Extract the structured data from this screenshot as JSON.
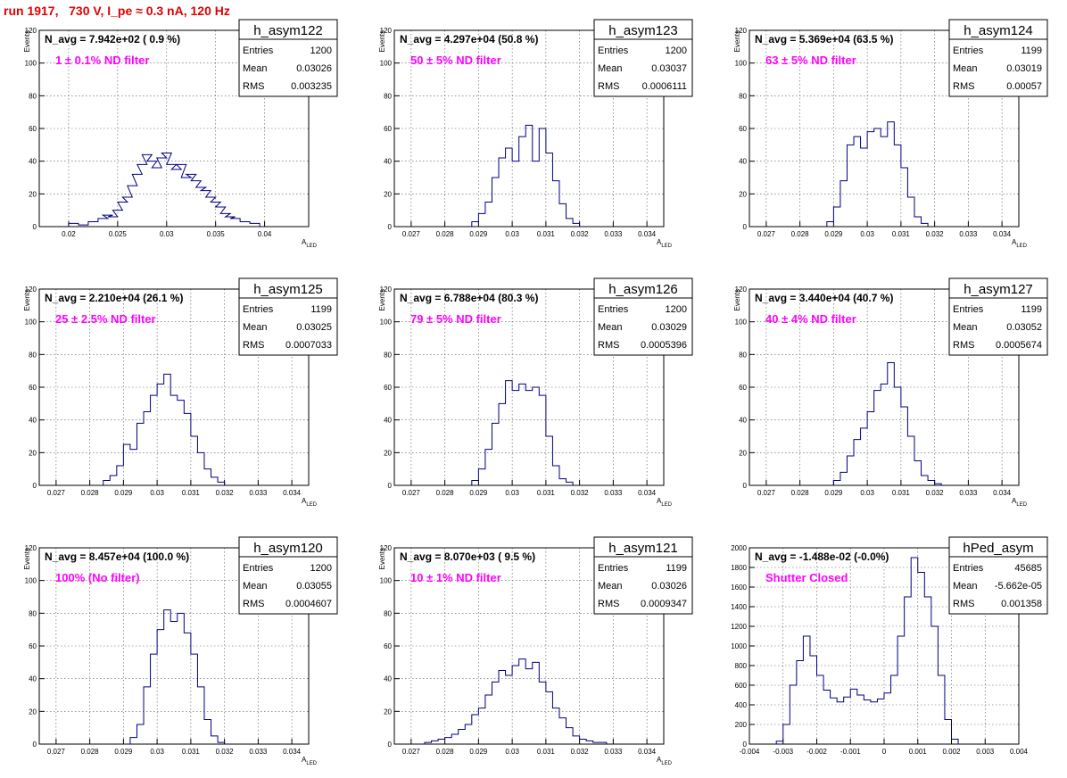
{
  "page": {
    "title": "run 1917,   730 V, I_pe ≈ 0.3 nA, 120 Hz"
  },
  "colors": {
    "histogram": "#000080",
    "annotation": "#ff00ff",
    "title": "#e00000",
    "grid": "#555555"
  },
  "stats_labels": {
    "entries": "Entries",
    "mean": "Mean",
    "rms": "RMS"
  },
  "chart_data": [
    {
      "type": "histogram",
      "hist_name": "h_asym122",
      "navg": "N_avg = 7.942e+02 ( 0.9 %)",
      "filter": "1 ± 0.1% ND filter",
      "ylabel": "Events",
      "xlabel": "A",
      "xlabel_sub": "LED",
      "xlim": [
        0.017,
        0.0445
      ],
      "ylim": [
        0,
        120
      ],
      "xticks": [
        0.02,
        0.025,
        0.03,
        0.035,
        0.04
      ],
      "xtick_labels": [
        "0.02",
        "0.025",
        "0.03",
        "0.035",
        "0.04"
      ],
      "yticks": [
        0,
        20,
        40,
        60,
        80,
        100,
        120
      ],
      "stats": {
        "entries": "1200",
        "mean": "0.03026",
        "rms": "0.003235"
      },
      "x": [
        0.0205,
        0.0215,
        0.0225,
        0.0235,
        0.024,
        0.0245,
        0.025,
        0.0255,
        0.026,
        0.0265,
        0.027,
        0.0275,
        0.028,
        0.0285,
        0.029,
        0.0295,
        0.03,
        0.0305,
        0.031,
        0.0315,
        0.032,
        0.0325,
        0.033,
        0.0335,
        0.034,
        0.0345,
        0.035,
        0.0355,
        0.036,
        0.0365,
        0.037,
        0.038,
        0.039
      ],
      "values": [
        2,
        1,
        3,
        5,
        7,
        6,
        10,
        15,
        18,
        25,
        32,
        38,
        44,
        40,
        36,
        42,
        45,
        38,
        35,
        38,
        30,
        32,
        28,
        24,
        22,
        18,
        15,
        12,
        8,
        6,
        5,
        3,
        2
      ]
    },
    {
      "type": "histogram",
      "hist_name": "h_asym123",
      "navg": "N_avg = 4.297e+04 (50.8 %)",
      "filter": "50 ± 5% ND filter",
      "ylabel": "Events",
      "xlabel": "A",
      "xlabel_sub": "LED",
      "xlim": [
        0.0265,
        0.0345
      ],
      "ylim": [
        0,
        120
      ],
      "xticks": [
        0.027,
        0.028,
        0.029,
        0.03,
        0.031,
        0.032,
        0.033,
        0.034
      ],
      "xtick_labels": [
        "0.027",
        "0.028",
        "0.029",
        "0.03",
        "0.031",
        "0.032",
        "0.033",
        "0.034"
      ],
      "yticks": [
        0,
        20,
        40,
        60,
        80,
        100,
        120
      ],
      "stats": {
        "entries": "1200",
        "mean": "0.03037",
        "rms": "0.0006111"
      },
      "x": [
        0.0289,
        0.0291,
        0.0293,
        0.0295,
        0.0297,
        0.0299,
        0.0301,
        0.0303,
        0.0305,
        0.0307,
        0.0309,
        0.0311,
        0.0313,
        0.0315,
        0.0317,
        0.0319
      ],
      "values": [
        3,
        8,
        15,
        30,
        42,
        48,
        40,
        55,
        62,
        40,
        60,
        45,
        28,
        14,
        5,
        2
      ]
    },
    {
      "type": "histogram",
      "hist_name": "h_asym124",
      "navg": "N_avg = 5.369e+04 (63.5 %)",
      "filter": "63 ± 5% ND filter",
      "ylabel": "Events",
      "xlabel": "A",
      "xlabel_sub": "LED",
      "xlim": [
        0.0265,
        0.0345
      ],
      "ylim": [
        0,
        120
      ],
      "xticks": [
        0.027,
        0.028,
        0.029,
        0.03,
        0.031,
        0.032,
        0.033,
        0.034
      ],
      "xtick_labels": [
        "0.027",
        "0.028",
        "0.029",
        "0.03",
        "0.031",
        "0.032",
        "0.033",
        "0.034"
      ],
      "yticks": [
        0,
        20,
        40,
        60,
        80,
        100,
        120
      ],
      "stats": {
        "entries": "1199",
        "mean": "0.03019",
        "rms": "0.00057"
      },
      "x": [
        0.0289,
        0.0291,
        0.0293,
        0.0295,
        0.0297,
        0.0299,
        0.0301,
        0.0303,
        0.0305,
        0.0307,
        0.0309,
        0.0311,
        0.0313,
        0.0315,
        0.0317
      ],
      "values": [
        3,
        12,
        28,
        50,
        55,
        48,
        58,
        60,
        55,
        64,
        50,
        36,
        18,
        6,
        2
      ]
    },
    {
      "type": "histogram",
      "hist_name": "h_asym125",
      "navg": "N_avg = 2.210e+04 (26.1 %)",
      "filter": "25 ± 2.5% ND filter",
      "ylabel": "Events",
      "xlabel": "A",
      "xlabel_sub": "LED",
      "xlim": [
        0.0265,
        0.0345
      ],
      "ylim": [
        0,
        120
      ],
      "xticks": [
        0.027,
        0.028,
        0.029,
        0.03,
        0.031,
        0.032,
        0.033,
        0.034
      ],
      "xtick_labels": [
        "0.027",
        "0.028",
        "0.029",
        "0.03",
        "0.031",
        "0.032",
        "0.033",
        "0.034"
      ],
      "yticks": [
        0,
        20,
        40,
        60,
        80,
        100,
        120
      ],
      "stats": {
        "entries": "1199",
        "mean": "0.03025",
        "rms": "0.0007033"
      },
      "x": [
        0.0285,
        0.0287,
        0.0289,
        0.0291,
        0.0293,
        0.0295,
        0.0297,
        0.0299,
        0.0301,
        0.0303,
        0.0305,
        0.0307,
        0.0309,
        0.0311,
        0.0313,
        0.0315,
        0.0317,
        0.0319
      ],
      "values": [
        3,
        6,
        12,
        25,
        22,
        38,
        45,
        55,
        62,
        68,
        55,
        52,
        44,
        30,
        20,
        10,
        5,
        2
      ]
    },
    {
      "type": "histogram",
      "hist_name": "h_asym126",
      "navg": "N_avg = 6.788e+04 (80.3 %)",
      "filter": "79 ± 5% ND filter",
      "ylabel": "Events",
      "xlabel": "A",
      "xlabel_sub": "LED",
      "xlim": [
        0.0265,
        0.0345
      ],
      "ylim": [
        0,
        120
      ],
      "xticks": [
        0.027,
        0.028,
        0.029,
        0.03,
        0.031,
        0.032,
        0.033,
        0.034
      ],
      "xtick_labels": [
        "0.027",
        "0.028",
        "0.029",
        "0.03",
        "0.031",
        "0.032",
        "0.033",
        "0.034"
      ],
      "yticks": [
        0,
        20,
        40,
        60,
        80,
        100,
        120
      ],
      "stats": {
        "entries": "1200",
        "mean": "0.03029",
        "rms": "0.0005396"
      },
      "x": [
        0.0289,
        0.0291,
        0.0293,
        0.0295,
        0.0297,
        0.0299,
        0.0301,
        0.0303,
        0.0305,
        0.0307,
        0.0309,
        0.0311,
        0.0313,
        0.0315,
        0.0317
      ],
      "values": [
        3,
        10,
        22,
        38,
        50,
        64,
        58,
        62,
        58,
        60,
        55,
        30,
        12,
        4,
        2
      ]
    },
    {
      "type": "histogram",
      "hist_name": "h_asym127",
      "navg": "N_avg = 3.440e+04 (40.7 %)",
      "filter": "40 ± 4% ND filter",
      "ylabel": "Events",
      "xlabel": "A",
      "xlabel_sub": "LED",
      "xlim": [
        0.0265,
        0.0345
      ],
      "ylim": [
        0,
        120
      ],
      "xticks": [
        0.027,
        0.028,
        0.029,
        0.03,
        0.031,
        0.032,
        0.033,
        0.034
      ],
      "xtick_labels": [
        "0.027",
        "0.028",
        "0.029",
        "0.03",
        "0.031",
        "0.032",
        "0.033",
        "0.034"
      ],
      "yticks": [
        0,
        20,
        40,
        60,
        80,
        100,
        120
      ],
      "stats": {
        "entries": "1199",
        "mean": "0.03052",
        "rms": "0.0005674"
      },
      "x": [
        0.0291,
        0.0293,
        0.0295,
        0.0297,
        0.0299,
        0.0301,
        0.0303,
        0.0305,
        0.0307,
        0.0309,
        0.0311,
        0.0313,
        0.0315,
        0.0317,
        0.0319,
        0.0321
      ],
      "values": [
        3,
        8,
        18,
        28,
        35,
        45,
        58,
        62,
        75,
        60,
        48,
        30,
        15,
        6,
        3,
        1
      ]
    },
    {
      "type": "histogram",
      "hist_name": "h_asym120",
      "navg": "N_avg = 8.457e+04 (100.0 %)",
      "filter": "100% (No filter)",
      "ylabel": "Events",
      "xlabel": "A",
      "xlabel_sub": "LED",
      "xlim": [
        0.0265,
        0.0345
      ],
      "ylim": [
        0,
        120
      ],
      "xticks": [
        0.027,
        0.028,
        0.029,
        0.03,
        0.031,
        0.032,
        0.033,
        0.034
      ],
      "xtick_labels": [
        "0.027",
        "0.028",
        "0.029",
        "0.03",
        "0.031",
        "0.032",
        "0.033",
        "0.034"
      ],
      "yticks": [
        0,
        20,
        40,
        60,
        80,
        100,
        120
      ],
      "stats": {
        "entries": "1200",
        "mean": "0.03055",
        "rms": "0.0004607"
      },
      "x": [
        0.0293,
        0.0295,
        0.0297,
        0.0299,
        0.0301,
        0.0303,
        0.0305,
        0.0307,
        0.0309,
        0.0311,
        0.0313,
        0.0315,
        0.0317,
        0.0319
      ],
      "values": [
        4,
        12,
        35,
        55,
        70,
        82,
        75,
        80,
        68,
        55,
        35,
        15,
        5,
        1
      ]
    },
    {
      "type": "histogram",
      "hist_name": "h_asym121",
      "navg": "N_avg = 8.070e+03 ( 9.5 %)",
      "filter": "10 ± 1% ND filter",
      "ylabel": "Events",
      "xlabel": "A",
      "xlabel_sub": "LED",
      "xlim": [
        0.0265,
        0.0345
      ],
      "ylim": [
        0,
        120
      ],
      "xticks": [
        0.027,
        0.028,
        0.029,
        0.03,
        0.031,
        0.032,
        0.033,
        0.034
      ],
      "xtick_labels": [
        "0.027",
        "0.028",
        "0.029",
        "0.03",
        "0.031",
        "0.032",
        "0.033",
        "0.034"
      ],
      "yticks": [
        0,
        20,
        40,
        60,
        80,
        100,
        120
      ],
      "stats": {
        "entries": "1199",
        "mean": "0.03026",
        "rms": "0.0009347"
      },
      "x": [
        0.0275,
        0.0277,
        0.0279,
        0.0281,
        0.0283,
        0.0285,
        0.0287,
        0.0289,
        0.0291,
        0.0293,
        0.0295,
        0.0297,
        0.0299,
        0.0301,
        0.0303,
        0.0305,
        0.0307,
        0.0309,
        0.0311,
        0.0313,
        0.0315,
        0.0317,
        0.0319,
        0.0321,
        0.0323,
        0.0325,
        0.0327
      ],
      "values": [
        1,
        2,
        3,
        4,
        6,
        9,
        12,
        18,
        22,
        30,
        38,
        45,
        42,
        48,
        52,
        46,
        50,
        38,
        32,
        22,
        16,
        10,
        5,
        3,
        2,
        1,
        1
      ]
    },
    {
      "type": "histogram",
      "hist_name": "hPed_asym",
      "navg": "N_avg = -1.488e-02 (-0.0%)",
      "filter": "Shutter Closed",
      "ylabel": "",
      "xlabel": "",
      "xlabel_sub": "",
      "xlim": [
        -0.004,
        0.004
      ],
      "ylim": [
        0,
        2000
      ],
      "xticks": [
        -0.004,
        -0.003,
        -0.002,
        -0.001,
        0,
        0.001,
        0.002,
        0.003,
        0.004
      ],
      "xtick_labels": [
        "-0.004",
        "-0.003",
        "-0.002",
        "-0.001",
        "0",
        "0.001",
        "0.002",
        "0.003",
        "0.004"
      ],
      "yticks": [
        0,
        200,
        400,
        600,
        800,
        1000,
        1200,
        1400,
        1600,
        1800,
        2000
      ],
      "stats": {
        "entries": "45685",
        "mean": "-5.662e-05",
        "rms": "0.001358"
      },
      "x": [
        -0.0031,
        -0.0029,
        -0.0027,
        -0.0025,
        -0.0023,
        -0.0021,
        -0.0019,
        -0.0017,
        -0.0015,
        -0.0013,
        -0.0011,
        -0.0009,
        -0.0007,
        -0.0005,
        -0.0003,
        -0.0001,
        0.0001,
        0.0003,
        0.0005,
        0.0007,
        0.0009,
        0.0011,
        0.0013,
        0.0015,
        0.0017,
        0.0019,
        0.0021
      ],
      "values": [
        30,
        200,
        600,
        850,
        1100,
        900,
        700,
        550,
        470,
        430,
        480,
        560,
        500,
        450,
        430,
        460,
        520,
        700,
        1100,
        1500,
        1900,
        1750,
        1500,
        1200,
        700,
        250,
        50
      ]
    }
  ]
}
